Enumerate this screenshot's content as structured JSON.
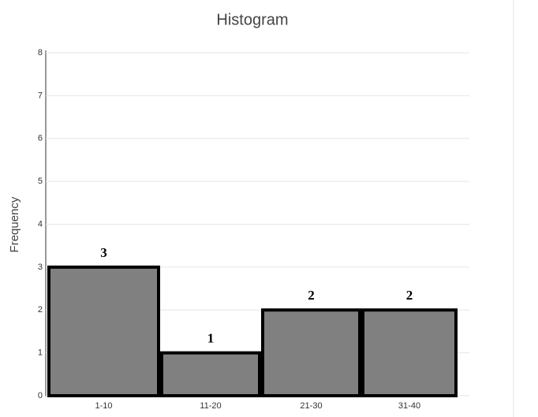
{
  "chart_data": {
    "type": "bar",
    "title": "Histogram",
    "y_label": "Frequency",
    "categories": [
      "1-10",
      "11-20",
      "21-30",
      "31-40"
    ],
    "values": [
      3,
      1,
      2,
      2
    ],
    "color": "#808080",
    "edge_color": "#000000",
    "ylim": [
      0,
      8
    ],
    "yticks": [
      0,
      1,
      2,
      3,
      4,
      5,
      6,
      7,
      8
    ],
    "grid": true
  }
}
